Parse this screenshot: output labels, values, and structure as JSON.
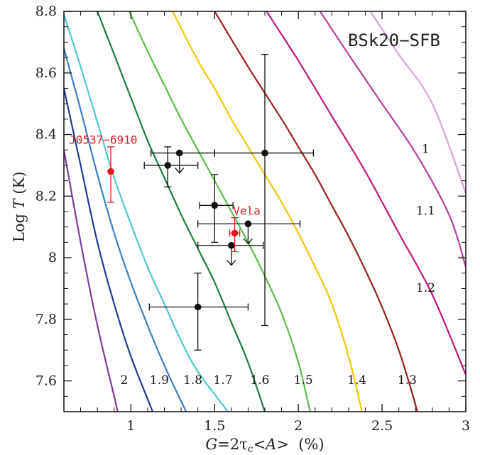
{
  "chart_data": {
    "type": "line",
    "title": "BSk20−SFB",
    "xlabel_parts": [
      "G",
      "=2τ",
      "c",
      "<",
      "A",
      ">  (%)"
    ],
    "ylabel_parts": [
      "Log ",
      "T",
      " (K)"
    ],
    "xlim": [
      0.6,
      3.0
    ],
    "ylim": [
      7.5,
      8.8
    ],
    "xticks": [
      1,
      1.5,
      2,
      2.5,
      3
    ],
    "xtick_labels": [
      "1",
      "1.5",
      "2",
      "2.5",
      "3"
    ],
    "yticks": [
      7.6,
      7.8,
      8.0,
      8.2,
      8.4,
      8.6,
      8.8
    ],
    "ytick_labels": [
      "7.6",
      "7.8",
      "8",
      "8.2",
      "8.4",
      "8.6",
      "8.8"
    ],
    "series": [
      {
        "label": "2",
        "color": "#7d3c98",
        "points": [
          [
            0.6,
            8.35
          ],
          [
            0.7,
            8.05
          ],
          [
            0.8,
            7.78
          ],
          [
            0.9,
            7.55
          ],
          [
            0.92,
            7.5
          ]
        ]
      },
      {
        "label": "1.9",
        "color": "#1f3a93",
        "points": [
          [
            0.6,
            8.55
          ],
          [
            0.7,
            8.3
          ],
          [
            0.8,
            8.05
          ],
          [
            0.9,
            7.85
          ],
          [
            1.0,
            7.68
          ],
          [
            1.13,
            7.5
          ]
        ]
      },
      {
        "label": "1.8",
        "color": "#3a7fc0",
        "points": [
          [
            0.6,
            8.68
          ],
          [
            0.7,
            8.48
          ],
          [
            0.8,
            8.27
          ],
          [
            0.9,
            8.08
          ],
          [
            1.0,
            7.92
          ],
          [
            1.1,
            7.78
          ],
          [
            1.2,
            7.65
          ],
          [
            1.33,
            7.5
          ]
        ]
      },
      {
        "label": "1.7",
        "color": "#4fc8cf",
        "points": [
          [
            0.6,
            8.79
          ],
          [
            0.7,
            8.62
          ],
          [
            0.8,
            8.44
          ],
          [
            0.9,
            8.26
          ],
          [
            1.0,
            8.11
          ],
          [
            1.1,
            7.97
          ],
          [
            1.2,
            7.85
          ],
          [
            1.3,
            7.73
          ],
          [
            1.4,
            7.63
          ],
          [
            1.58,
            7.5
          ]
        ]
      },
      {
        "label": "1.6",
        "color": "#1e7d3c",
        "points": [
          [
            0.8,
            8.8
          ],
          [
            0.9,
            8.66
          ],
          [
            1.0,
            8.52
          ],
          [
            1.1,
            8.38
          ],
          [
            1.2,
            8.26
          ],
          [
            1.3,
            8.14
          ],
          [
            1.4,
            8.03
          ],
          [
            1.5,
            7.92
          ],
          [
            1.6,
            7.79
          ],
          [
            1.7,
            7.66
          ],
          [
            1.8,
            7.5
          ]
        ]
      },
      {
        "label": "1.5",
        "color": "#5cbd4a",
        "points": [
          [
            0.99,
            8.8
          ],
          [
            1.1,
            8.67
          ],
          [
            1.2,
            8.56
          ],
          [
            1.3,
            8.45
          ],
          [
            1.4,
            8.35
          ],
          [
            1.5,
            8.25
          ],
          [
            1.6,
            8.15
          ],
          [
            1.7,
            8.05
          ],
          [
            1.8,
            7.94
          ],
          [
            1.9,
            7.82
          ],
          [
            2.0,
            7.66
          ],
          [
            2.07,
            7.5
          ]
        ]
      },
      {
        "label": "1.4",
        "color": "#f0c800",
        "points": [
          [
            1.25,
            8.8
          ],
          [
            1.4,
            8.64
          ],
          [
            1.5,
            8.55
          ],
          [
            1.6,
            8.45
          ],
          [
            1.7,
            8.36
          ],
          [
            1.8,
            8.27
          ],
          [
            1.9,
            8.18
          ],
          [
            2.0,
            8.08
          ],
          [
            2.1,
            7.97
          ],
          [
            2.2,
            7.85
          ],
          [
            2.3,
            7.68
          ],
          [
            2.38,
            7.5
          ]
        ]
      },
      {
        "label": "1.3",
        "color": "#9b1f1f",
        "points": [
          [
            1.5,
            8.8
          ],
          [
            1.7,
            8.62
          ],
          [
            1.9,
            8.45
          ],
          [
            2.0,
            8.36
          ],
          [
            2.1,
            8.27
          ],
          [
            2.2,
            8.17
          ],
          [
            2.3,
            8.07
          ],
          [
            2.4,
            7.96
          ],
          [
            2.5,
            7.84
          ],
          [
            2.6,
            7.7
          ],
          [
            2.68,
            7.56
          ],
          [
            2.71,
            7.5
          ]
        ]
      },
      {
        "label": "1.2",
        "color": "#c2187a",
        "points": [
          [
            1.81,
            8.8
          ],
          [
            2.0,
            8.64
          ],
          [
            2.2,
            8.46
          ],
          [
            2.4,
            8.28
          ],
          [
            2.6,
            8.08
          ],
          [
            2.8,
            7.88
          ],
          [
            3.0,
            7.62
          ]
        ]
      },
      {
        "label": "1.1",
        "color": "#b3409b",
        "points": [
          [
            2.13,
            8.8
          ],
          [
            2.3,
            8.66
          ],
          [
            2.5,
            8.5
          ],
          [
            2.7,
            8.34
          ],
          [
            2.9,
            8.14
          ],
          [
            3.0,
            7.97
          ]
        ]
      },
      {
        "label": "1",
        "color": "#d7a3d9",
        "points": [
          [
            2.43,
            8.8
          ],
          [
            2.6,
            8.66
          ],
          [
            2.8,
            8.5
          ],
          [
            3.0,
            8.21
          ]
        ]
      }
    ],
    "curve_labels": [
      {
        "text": "1",
        "x": 2.76,
        "y": 8.34
      },
      {
        "text": "1.1",
        "x": 2.76,
        "y": 8.14
      },
      {
        "text": "1.2",
        "x": 2.76,
        "y": 7.89
      },
      {
        "text": "1.3",
        "x": 2.65,
        "y": 7.59
      },
      {
        "text": "1.4",
        "x": 2.35,
        "y": 7.59
      },
      {
        "text": "1.5",
        "x": 2.03,
        "y": 7.59
      },
      {
        "text": "1.6",
        "x": 1.77,
        "y": 7.59
      },
      {
        "text": "1.7",
        "x": 1.55,
        "y": 7.59
      },
      {
        "text": "1.8",
        "x": 1.37,
        "y": 7.59
      },
      {
        "text": "1.9",
        "x": 1.17,
        "y": 7.59
      },
      {
        "text": "2",
        "x": 0.96,
        "y": 7.59
      }
    ],
    "points": [
      {
        "x": 1.22,
        "y": 8.3,
        "xerr": [
          0.14,
          0.18
        ],
        "yerr": [
          0.07,
          0.06
        ],
        "color": "#111111",
        "upper_limit": false
      },
      {
        "x": 1.29,
        "y": 8.34,
        "xerr": [
          0.17,
          0.21
        ],
        "yerr": null,
        "color": "#111111",
        "upper_limit": true
      },
      {
        "x": 1.8,
        "y": 8.34,
        "xerr": [
          0.3,
          0.29
        ],
        "yerr": [
          0.56,
          0.32
        ],
        "color": "#111111",
        "upper_limit": false
      },
      {
        "x": 1.5,
        "y": 8.17,
        "xerr": [
          0.09,
          0.11
        ],
        "yerr": [
          0.12,
          0.1
        ],
        "color": "#111111",
        "upper_limit": false
      },
      {
        "x": 1.7,
        "y": 8.11,
        "xerr": [
          0.3,
          0.31
        ],
        "yerr": null,
        "color": "#111111",
        "upper_limit": true
      },
      {
        "x": 1.6,
        "y": 8.04,
        "xerr": [
          0.2,
          0.19
        ],
        "yerr": null,
        "color": "#111111",
        "upper_limit": true
      },
      {
        "x": 1.4,
        "y": 7.84,
        "xerr": [
          0.29,
          0.3
        ],
        "yerr": [
          0.14,
          0.11
        ],
        "color": "#111111",
        "upper_limit": false
      },
      {
        "x": 0.88,
        "y": 8.28,
        "xerr": null,
        "yerr": [
          0.1,
          0.08
        ],
        "color": "#e01b1b",
        "upper_limit": false
      },
      {
        "x": 1.62,
        "y": 8.08,
        "xerr": [
          0.03,
          0.03
        ],
        "yerr": [
          0.06,
          0.05
        ],
        "color": "#e01b1b",
        "upper_limit": false
      }
    ],
    "source_labels": [
      {
        "text": "J0537−6910",
        "x": 0.63,
        "y": 8.37,
        "color": "#e01b1b"
      },
      {
        "text": "Vela",
        "x": 1.61,
        "y": 8.14,
        "color": "#e01b1b"
      }
    ]
  }
}
